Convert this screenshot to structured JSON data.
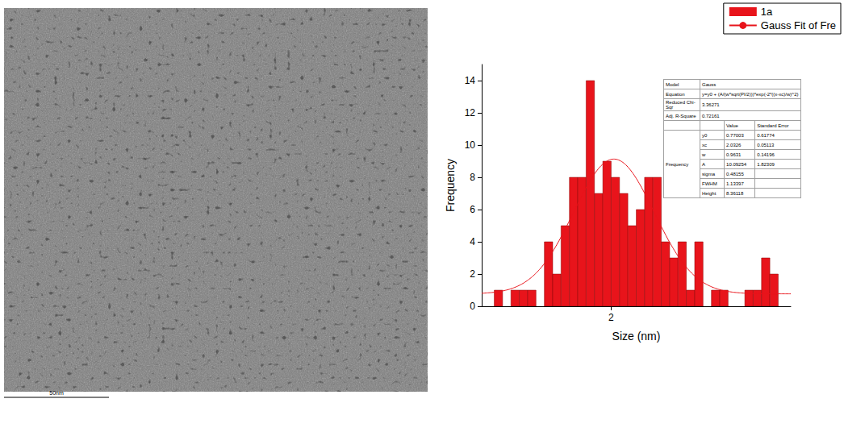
{
  "micrograph": {
    "scale_bar": "50nm"
  },
  "chart_data": {
    "type": "histogram",
    "x_label": "Size (nm)",
    "y_label": "Frequency",
    "xlim": [
      0.45,
      4.15
    ],
    "xticks": [
      2
    ],
    "ylim": [
      0,
      15
    ],
    "yticks": [
      0,
      2,
      4,
      6,
      8,
      10,
      12,
      14
    ],
    "legend": "top-right",
    "series": [
      {
        "name": "1a",
        "type": "histogram",
        "color": "#e8141b",
        "bins": [
          0.6,
          0.7,
          0.8,
          0.9,
          1.0,
          1.1,
          1.2,
          1.3,
          1.4,
          1.5,
          1.6,
          1.7,
          1.8,
          1.9,
          2.0,
          2.1,
          2.2,
          2.3,
          2.4,
          2.5,
          2.6,
          2.7,
          2.8,
          2.9,
          3.0,
          3.1,
          3.2,
          3.3,
          3.4,
          3.5,
          3.6,
          3.7,
          3.8,
          3.9,
          4.0
        ],
        "values": [
          1,
          0,
          1,
          1,
          1,
          0,
          4,
          2,
          5,
          8,
          8,
          14,
          7,
          9,
          8,
          7,
          5,
          6,
          8,
          8,
          4,
          3,
          4,
          1,
          4,
          0,
          1,
          1,
          0,
          0,
          1,
          1,
          3,
          2
        ]
      },
      {
        "name": "Gauss Fit of Fre",
        "type": "line",
        "color": "#e8141b"
      }
    ],
    "fit_table": {
      "rows": [
        [
          "Model",
          "Gauss"
        ],
        [
          "Equation",
          "y=y0 + (A/(w*sqrt(PI/2)))*exp(-2*((x-xc)/w)^2)"
        ],
        [
          "Reduced Chi-Sqr",
          3.36271
        ],
        [
          "Adj. R-Square",
          0.72161
        ]
      ],
      "columns": [
        "Value",
        "Standard Error"
      ],
      "group": "Frequency",
      "params": [
        [
          "y0",
          0.77003,
          0.61774
        ],
        [
          "xc",
          2.0326,
          0.05113
        ],
        [
          "w",
          0.9631,
          0.14196
        ],
        [
          "A",
          10.09254,
          1.82309
        ],
        [
          "sigma",
          0.48155,
          null
        ],
        [
          "FWHM",
          1.13397,
          null
        ],
        [
          "Height",
          8.36118,
          null
        ]
      ]
    }
  }
}
